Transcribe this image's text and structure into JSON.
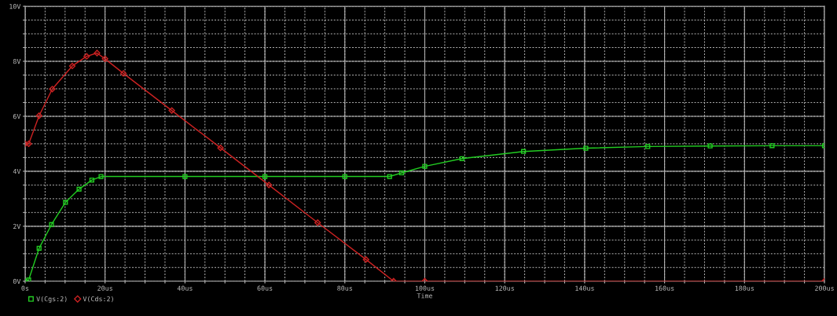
{
  "chart_data": {
    "type": "line",
    "xlabel": "Time",
    "xlim": [
      0,
      200
    ],
    "ylim": [
      0,
      10
    ],
    "xticks": [
      {
        "value": 0,
        "label": "0s"
      },
      {
        "value": 5,
        "label": null
      },
      {
        "value": 10,
        "label": null
      },
      {
        "value": 15,
        "label": null
      },
      {
        "value": 20,
        "label": "20us"
      },
      {
        "value": 25,
        "label": null
      },
      {
        "value": 30,
        "label": null
      },
      {
        "value": 35,
        "label": null
      },
      {
        "value": 40,
        "label": "40us"
      },
      {
        "value": 45,
        "label": null
      },
      {
        "value": 50,
        "label": null
      },
      {
        "value": 55,
        "label": null
      },
      {
        "value": 60,
        "label": "60us"
      },
      {
        "value": 65,
        "label": null
      },
      {
        "value": 70,
        "label": null
      },
      {
        "value": 75,
        "label": null
      },
      {
        "value": 80,
        "label": "80us"
      },
      {
        "value": 85,
        "label": null
      },
      {
        "value": 90,
        "label": null
      },
      {
        "value": 95,
        "label": null
      },
      {
        "value": 100,
        "label": "100us"
      },
      {
        "value": 105,
        "label": null
      },
      {
        "value": 110,
        "label": null
      },
      {
        "value": 115,
        "label": null
      },
      {
        "value": 120,
        "label": "120us"
      },
      {
        "value": 125,
        "label": null
      },
      {
        "value": 130,
        "label": null
      },
      {
        "value": 135,
        "label": null
      },
      {
        "value": 140,
        "label": "140us"
      },
      {
        "value": 145,
        "label": null
      },
      {
        "value": 150,
        "label": null
      },
      {
        "value": 155,
        "label": null
      },
      {
        "value": 160,
        "label": "160us"
      },
      {
        "value": 165,
        "label": null
      },
      {
        "value": 170,
        "label": null
      },
      {
        "value": 175,
        "label": null
      },
      {
        "value": 180,
        "label": "180us"
      },
      {
        "value": 185,
        "label": null
      },
      {
        "value": 190,
        "label": null
      },
      {
        "value": 195,
        "label": null
      },
      {
        "value": 200,
        "label": "200us"
      }
    ],
    "yticks": [
      {
        "value": 0,
        "label": "0V"
      },
      {
        "value": 0.5,
        "label": null
      },
      {
        "value": 1,
        "label": null
      },
      {
        "value": 1.5,
        "label": null
      },
      {
        "value": 2,
        "label": "2V"
      },
      {
        "value": 2.5,
        "label": null
      },
      {
        "value": 3,
        "label": null
      },
      {
        "value": 3.5,
        "label": null
      },
      {
        "value": 4,
        "label": "4V"
      },
      {
        "value": 4.5,
        "label": null
      },
      {
        "value": 5,
        "label": null
      },
      {
        "value": 5.5,
        "label": null
      },
      {
        "value": 6,
        "label": "6V"
      },
      {
        "value": 6.5,
        "label": null
      },
      {
        "value": 7,
        "label": null
      },
      {
        "value": 7.5,
        "label": null
      },
      {
        "value": 8,
        "label": "8V"
      },
      {
        "value": 8.5,
        "label": null
      },
      {
        "value": 9,
        "label": null
      },
      {
        "value": 9.5,
        "label": null
      },
      {
        "value": 10,
        "label": "10V"
      }
    ],
    "grid": true,
    "legend": "bottom left",
    "series": [
      {
        "name": "V(Cgs:2)",
        "color": "#22cc22",
        "marker": "square",
        "x": [
          0,
          0.9,
          3.5,
          6.6,
          10.1,
          13.5,
          16.7,
          19,
          40,
          60,
          80,
          91.2,
          94.2,
          100,
          109.3,
          124.7,
          140.3,
          155.8,
          171.4,
          186.9,
          200
        ],
        "values": [
          0,
          0.05,
          1.2,
          2.06,
          2.87,
          3.35,
          3.68,
          3.81,
          3.81,
          3.81,
          3.81,
          3.81,
          3.94,
          4.18,
          4.46,
          4.72,
          4.84,
          4.9,
          4.92,
          4.93,
          4.93
        ]
      },
      {
        "name": "V(Cds:2)",
        "color": "#cc2222",
        "marker": "diamond",
        "x": [
          0,
          0.9,
          3.5,
          6.8,
          11.8,
          15.4,
          18.0,
          20.0,
          24.6,
          36.7,
          48.9,
          61.0,
          73.2,
          85.3,
          92.2,
          100,
          200
        ],
        "values": [
          5.0,
          5.0,
          6.02,
          6.99,
          7.83,
          8.18,
          8.3,
          8.09,
          7.56,
          6.21,
          4.85,
          3.5,
          2.13,
          0.79,
          0,
          0,
          0
        ]
      }
    ]
  }
}
